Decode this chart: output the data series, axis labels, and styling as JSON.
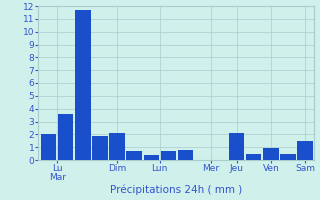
{
  "bars": [
    {
      "value": 2.0
    },
    {
      "value": 3.6
    },
    {
      "value": 11.7
    },
    {
      "value": 1.9
    },
    {
      "value": 2.1
    },
    {
      "value": 0.7
    },
    {
      "value": 0.4
    },
    {
      "value": 0.7
    },
    {
      "value": 0.8
    },
    {
      "value": 0.0
    },
    {
      "value": 0.0
    },
    {
      "value": 2.1
    },
    {
      "value": 0.5
    },
    {
      "value": 0.9
    },
    {
      "value": 0.5
    },
    {
      "value": 1.5
    }
  ],
  "day_labels": [
    "Lu\nMar",
    "Dim",
    "Lun",
    "Mer",
    "Jeu",
    "Ven",
    "Sam"
  ],
  "day_tick_positions": [
    0.5,
    4,
    6.5,
    9.5,
    11,
    13,
    15
  ],
  "xlabel": "Précipitations 24h ( mm )",
  "ylim": [
    0,
    12
  ],
  "yticks": [
    0,
    1,
    2,
    3,
    4,
    5,
    6,
    7,
    8,
    9,
    10,
    11,
    12
  ],
  "bar_color": "#1a4fcc",
  "background_color": "#cff0eb",
  "grid_color": "#aacccc",
  "text_color": "#3355cc",
  "xlabel_fontsize": 7.5,
  "ytick_fontsize": 6.5,
  "xtick_fontsize": 6.5
}
